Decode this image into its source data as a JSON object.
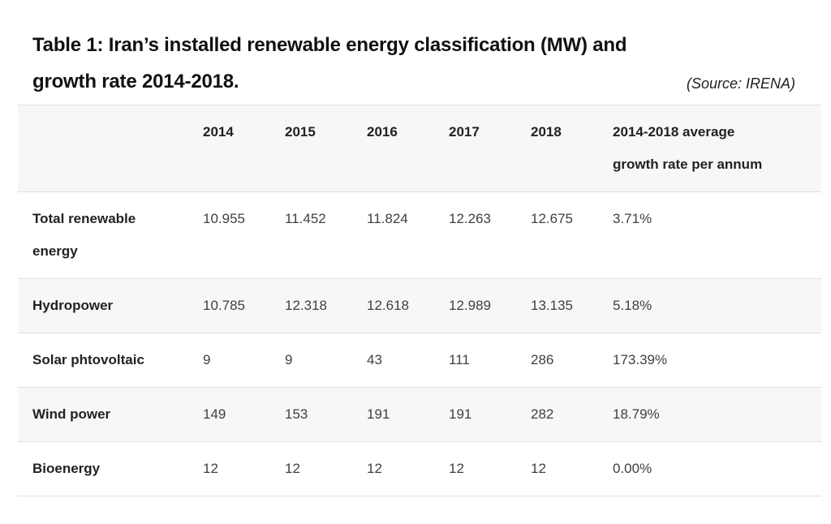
{
  "caption": {
    "title_line1": "Table 1: Iran’s installed renewable energy classification (MW) and",
    "title_line2": "growth rate 2014-2018.",
    "source": "(Source: IRENA)"
  },
  "table": {
    "year_columns": [
      "2014",
      "2015",
      "2016",
      "2017",
      "2018"
    ],
    "avg_column_line1": "2014-2018 average",
    "avg_column_line2": "growth rate per annum",
    "rows": [
      {
        "label": "Total renewable energy",
        "values": [
          "10.955",
          "11.452",
          "11.824",
          "12.263",
          "12.675",
          "3.71%"
        ]
      },
      {
        "label": "Hydropower",
        "values": [
          "10.785",
          "12.318",
          "12.618",
          "12.989",
          "13.135",
          "5.18%"
        ]
      },
      {
        "label": "Solar phtovoltaic",
        "values": [
          "9",
          "9",
          "43",
          "111",
          "286",
          "173.39%"
        ]
      },
      {
        "label": "Wind power",
        "values": [
          "149",
          "153",
          "191",
          "191",
          "282",
          "18.79%"
        ]
      },
      {
        "label": "Bioenergy",
        "values": [
          "12",
          "12",
          "12",
          "12",
          "12",
          "0.00%"
        ]
      }
    ]
  },
  "chart_data": {
    "type": "table",
    "title": "Table 1: Iran’s installed renewable energy classification (MW) and growth rate 2014-2018.",
    "source": "(Source: IRENA)",
    "columns": [
      "",
      "2014",
      "2015",
      "2016",
      "2017",
      "2018",
      "2014-2018 average growth rate per annum"
    ],
    "rows": [
      [
        "Total renewable energy",
        "10.955",
        "11.452",
        "11.824",
        "12.263",
        "12.675",
        "3.71%"
      ],
      [
        "Hydropower",
        "10.785",
        "12.318",
        "12.618",
        "12.989",
        "13.135",
        "5.18%"
      ],
      [
        "Solar phtovoltaic",
        "9",
        "9",
        "43",
        "111",
        "286",
        "173.39%"
      ],
      [
        "Wind power",
        "149",
        "153",
        "191",
        "191",
        "282",
        "18.79%"
      ],
      [
        "Bioenergy",
        "12",
        "12",
        "12",
        "12",
        "12",
        "0.00%"
      ]
    ]
  },
  "colors": {
    "stripe_background": "#f7f7f7",
    "row_border": "#e0e0e0",
    "title_text": "#111111",
    "header_text": "#222222",
    "body_text": "#404040"
  }
}
